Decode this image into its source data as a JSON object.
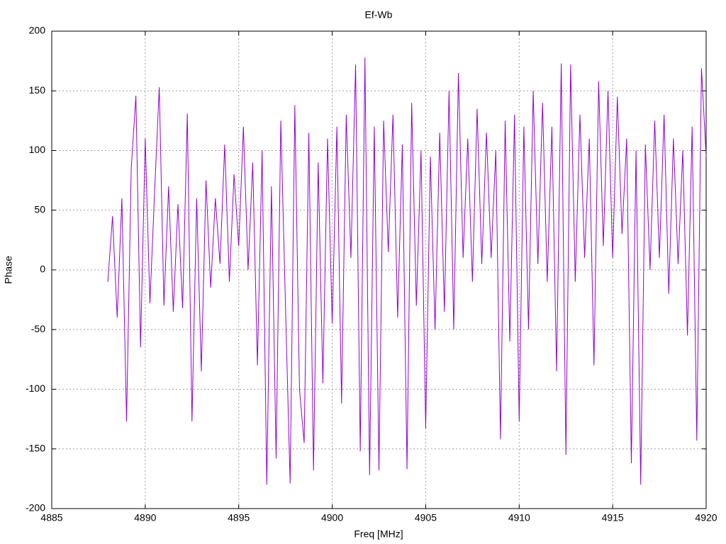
{
  "chart_data": {
    "type": "line",
    "title": "Ef-Wb",
    "x_label": "Freq [MHz]",
    "y_label": "Phase",
    "xlim": [
      4885,
      4920
    ],
    "xticks": [
      4885,
      4890,
      4895,
      4900,
      4905,
      4910,
      4915,
      4920
    ],
    "ylim": [
      -200,
      200
    ],
    "yticks": [
      -200,
      -150,
      -100,
      -50,
      0,
      50,
      100,
      150,
      200
    ],
    "grid": true,
    "x": [
      4888,
      4888.25,
      4888.5,
      4888.75,
      4889,
      4889.25,
      4889.5,
      4889.75,
      4890,
      4890.25,
      4890.5,
      4890.75,
      4891,
      4891.25,
      4891.5,
      4891.75,
      4892,
      4892.25,
      4892.5,
      4892.75,
      4893,
      4893.25,
      4893.5,
      4893.75,
      4894,
      4894.25,
      4894.5,
      4894.75,
      4895,
      4895.25,
      4895.5,
      4895.75,
      4896,
      4896.25,
      4896.5,
      4896.75,
      4897,
      4897.25,
      4897.5,
      4897.75,
      4898,
      4898.25,
      4898.5,
      4898.75,
      4899,
      4899.25,
      4899.5,
      4899.75,
      4900,
      4900.25,
      4900.5,
      4900.75,
      4901,
      4901.25,
      4901.5,
      4901.75,
      4902,
      4902.25,
      4902.5,
      4902.75,
      4903,
      4903.25,
      4903.5,
      4903.75,
      4904,
      4904.25,
      4904.5,
      4904.75,
      4905,
      4905.25,
      4905.5,
      4905.75,
      4906,
      4906.25,
      4906.5,
      4906.75,
      4907,
      4907.25,
      4907.5,
      4907.75,
      4908,
      4908.25,
      4908.5,
      4908.75,
      4909,
      4909.25,
      4909.5,
      4909.75,
      4910,
      4910.25,
      4910.5,
      4910.75,
      4911,
      4911.25,
      4911.5,
      4911.75,
      4912,
      4912.25,
      4912.5,
      4912.75,
      4913,
      4913.25,
      4913.5,
      4913.75,
      4914,
      4914.25,
      4914.5,
      4914.75,
      4915,
      4915.25,
      4915.5,
      4915.75,
      4916,
      4916.25,
      4916.5,
      4916.75,
      4917,
      4917.25,
      4917.5,
      4917.75,
      4918,
      4918.25,
      4918.5,
      4918.75,
      4919,
      4919.25,
      4919.5,
      4919.75,
      4920
    ],
    "series": [
      {
        "color": "#9400d3",
        "values": [
          -10,
          45,
          -40,
          60,
          -127,
          85,
          146,
          -65,
          110,
          -28,
          65,
          153,
          -30,
          70,
          -35,
          55,
          -32,
          131,
          -127,
          60,
          -85,
          75,
          -15,
          60,
          5,
          105,
          -10,
          80,
          20,
          120,
          0,
          90,
          -80,
          100,
          -180,
          70,
          -158,
          125,
          -30,
          -179,
          138,
          -100,
          -145,
          115,
          -168,
          90,
          -95,
          110,
          -45,
          120,
          -112,
          130,
          10,
          172,
          -152,
          178,
          -172,
          120,
          -168,
          125,
          15,
          130,
          -40,
          105,
          -167,
          140,
          -30,
          100,
          -133,
          95,
          -50,
          115,
          -35,
          150,
          -50,
          165,
          10,
          110,
          -10,
          135,
          5,
          115,
          10,
          100,
          -142,
          125,
          -60,
          130,
          -127,
          120,
          -50,
          150,
          5,
          140,
          -10,
          120,
          -85,
          173,
          -155,
          172,
          -10,
          130,
          10,
          110,
          -80,
          158,
          20,
          150,
          10,
          145,
          30,
          110,
          -162,
          100,
          -180,
          105,
          0,
          125,
          10,
          130,
          -20,
          110,
          5,
          100,
          -55,
          120,
          -143,
          169,
          95
        ]
      }
    ]
  }
}
